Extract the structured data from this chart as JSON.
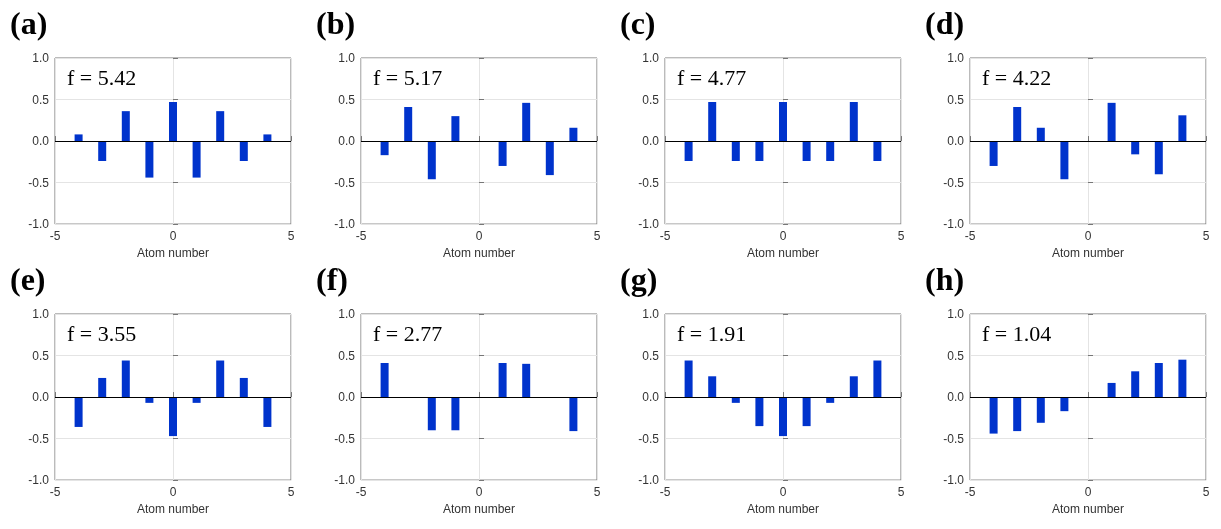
{
  "chart_data": [
    {
      "type": "bar",
      "title": "(a)",
      "annotations": [
        "f = 5.42"
      ],
      "xlabel": "Atom number",
      "x": [
        -4,
        -3,
        -2,
        -1,
        0,
        1,
        2,
        3,
        4
      ],
      "values": [
        0.08,
        -0.24,
        0.36,
        -0.44,
        0.47,
        -0.44,
        0.36,
        -0.24,
        0.08
      ],
      "color": "#0033cc",
      "xlim": [
        -5,
        5
      ],
      "xticks": [
        -5,
        0,
        5
      ],
      "ylim": [
        -1,
        1
      ],
      "yticks": [
        {
          "value": -1,
          "label": "-1.0"
        },
        {
          "value": -0.5,
          "label": "-0.5"
        },
        {
          "value": 0,
          "label": "0.0"
        },
        {
          "value": 0.5,
          "label": "0.5"
        },
        {
          "value": 1,
          "label": "1.0"
        }
      ],
      "grid": true,
      "ref_lines": [
        {
          "axis": "y",
          "value": 0,
          "color": "#000000"
        }
      ]
    },
    {
      "type": "bar",
      "title": "(b)",
      "annotations": [
        "f = 5.17"
      ],
      "xlabel": "Atom number",
      "x": [
        -4,
        -3,
        -2,
        -1,
        0,
        1,
        2,
        3,
        4
      ],
      "values": [
        -0.17,
        0.41,
        -0.46,
        0.3,
        0,
        -0.3,
        0.46,
        -0.41,
        0.16
      ],
      "color": "#0033cc",
      "xlim": [
        -5,
        5
      ],
      "xticks": [
        -5,
        0,
        5
      ],
      "ylim": [
        -1,
        1
      ],
      "yticks": [
        {
          "value": -1,
          "label": "-1.0"
        },
        {
          "value": -0.5,
          "label": "-0.5"
        },
        {
          "value": 0,
          "label": "0.0"
        },
        {
          "value": 0.5,
          "label": "0.5"
        },
        {
          "value": 1,
          "label": "1.0"
        }
      ],
      "grid": true,
      "ref_lines": [
        {
          "axis": "y",
          "value": 0,
          "color": "#000000"
        }
      ]
    },
    {
      "type": "bar",
      "title": "(c)",
      "annotations": [
        "f = 4.77"
      ],
      "xlabel": "Atom number",
      "x": [
        -4,
        -3,
        -2,
        -1,
        0,
        1,
        2,
        3,
        4
      ],
      "values": [
        -0.24,
        0.47,
        -0.24,
        -0.24,
        0.47,
        -0.24,
        -0.24,
        0.47,
        -0.24
      ],
      "color": "#0033cc",
      "xlim": [
        -5,
        5
      ],
      "xticks": [
        -5,
        0,
        5
      ],
      "ylim": [
        -1,
        1
      ],
      "yticks": [
        {
          "value": -1,
          "label": "-1.0"
        },
        {
          "value": -0.5,
          "label": "-0.5"
        },
        {
          "value": 0,
          "label": "0.0"
        },
        {
          "value": 0.5,
          "label": "0.5"
        },
        {
          "value": 1,
          "label": "1.0"
        }
      ],
      "grid": true,
      "ref_lines": [
        {
          "axis": "y",
          "value": 0,
          "color": "#000000"
        }
      ]
    },
    {
      "type": "bar",
      "title": "(d)",
      "annotations": [
        "f = 4.22"
      ],
      "xlabel": "Atom number",
      "x": [
        -4,
        -3,
        -2,
        -1,
        0,
        1,
        2,
        3,
        4
      ],
      "values": [
        -0.3,
        0.41,
        0.16,
        -0.46,
        0,
        0.46,
        -0.16,
        -0.4,
        0.31
      ],
      "color": "#0033cc",
      "xlim": [
        -5,
        5
      ],
      "xticks": [
        -5,
        0,
        5
      ],
      "ylim": [
        -1,
        1
      ],
      "yticks": [
        {
          "value": -1,
          "label": "-1.0"
        },
        {
          "value": -0.5,
          "label": "-0.5"
        },
        {
          "value": 0,
          "label": "0.0"
        },
        {
          "value": 0.5,
          "label": "0.5"
        },
        {
          "value": 1,
          "label": "1.0"
        }
      ],
      "grid": true,
      "ref_lines": [
        {
          "axis": "y",
          "value": 0,
          "color": "#000000"
        }
      ]
    },
    {
      "type": "bar",
      "title": "(e)",
      "annotations": [
        "f = 3.55"
      ],
      "xlabel": "Atom number",
      "x": [
        -4,
        -3,
        -2,
        -1,
        0,
        1,
        2,
        3,
        4
      ],
      "values": [
        -0.36,
        0.23,
        0.44,
        -0.07,
        -0.47,
        -0.07,
        0.44,
        0.23,
        -0.36
      ],
      "color": "#0033cc",
      "xlim": [
        -5,
        5
      ],
      "xticks": [
        -5,
        0,
        5
      ],
      "ylim": [
        -1,
        1
      ],
      "yticks": [
        {
          "value": -1,
          "label": "-1.0"
        },
        {
          "value": -0.5,
          "label": "-0.5"
        },
        {
          "value": 0,
          "label": "0.0"
        },
        {
          "value": 0.5,
          "label": "0.5"
        },
        {
          "value": 1,
          "label": "1.0"
        }
      ],
      "grid": true,
      "ref_lines": [
        {
          "axis": "y",
          "value": 0,
          "color": "#000000"
        }
      ]
    },
    {
      "type": "bar",
      "title": "(f)",
      "annotations": [
        "f = 2.77"
      ],
      "xlabel": "Atom number",
      "x": [
        -4,
        -3,
        -2,
        -1,
        0,
        1,
        2,
        3,
        4
      ],
      "values": [
        0.41,
        0,
        -0.4,
        -0.4,
        0,
        0.41,
        0.4,
        0,
        -0.41
      ],
      "color": "#0033cc",
      "xlim": [
        -5,
        5
      ],
      "xticks": [
        -5,
        0,
        5
      ],
      "ylim": [
        -1,
        1
      ],
      "yticks": [
        {
          "value": -1,
          "label": "-1.0"
        },
        {
          "value": -0.5,
          "label": "-0.5"
        },
        {
          "value": 0,
          "label": "0.0"
        },
        {
          "value": 0.5,
          "label": "0.5"
        },
        {
          "value": 1,
          "label": "1.0"
        }
      ],
      "grid": true,
      "ref_lines": [
        {
          "axis": "y",
          "value": 0,
          "color": "#000000"
        }
      ]
    },
    {
      "type": "bar",
      "title": "(g)",
      "annotations": [
        "f = 1.91"
      ],
      "xlabel": "Atom number",
      "x": [
        -4,
        -3,
        -2,
        -1,
        0,
        1,
        2,
        3,
        4
      ],
      "values": [
        0.44,
        0.25,
        -0.07,
        -0.35,
        -0.47,
        -0.35,
        -0.07,
        0.25,
        0.44
      ],
      "color": "#0033cc",
      "xlim": [
        -5,
        5
      ],
      "xticks": [
        -5,
        0,
        5
      ],
      "ylim": [
        -1,
        1
      ],
      "yticks": [
        {
          "value": -1,
          "label": "-1.0"
        },
        {
          "value": -0.5,
          "label": "-0.5"
        },
        {
          "value": 0,
          "label": "0.0"
        },
        {
          "value": 0.5,
          "label": "0.5"
        },
        {
          "value": 1,
          "label": "1.0"
        }
      ],
      "grid": true,
      "ref_lines": [
        {
          "axis": "y",
          "value": 0,
          "color": "#000000"
        }
      ]
    },
    {
      "type": "bar",
      "title": "(h)",
      "annotations": [
        "f = 1.04"
      ],
      "xlabel": "Atom number",
      "x": [
        -4,
        -3,
        -2,
        -1,
        0,
        1,
        2,
        3,
        4
      ],
      "values": [
        -0.44,
        -0.41,
        -0.31,
        -0.17,
        0,
        0.17,
        0.31,
        0.41,
        0.45
      ],
      "color": "#0033cc",
      "xlim": [
        -5,
        5
      ],
      "xticks": [
        -5,
        0,
        5
      ],
      "ylim": [
        -1,
        1
      ],
      "yticks": [
        {
          "value": -1,
          "label": "-1.0"
        },
        {
          "value": -0.5,
          "label": "-0.5"
        },
        {
          "value": 0,
          "label": "0.0"
        },
        {
          "value": 0.5,
          "label": "0.5"
        },
        {
          "value": 1,
          "label": "1.0"
        }
      ],
      "grid": true,
      "ref_lines": [
        {
          "axis": "y",
          "value": 0,
          "color": "#000000"
        }
      ]
    }
  ]
}
